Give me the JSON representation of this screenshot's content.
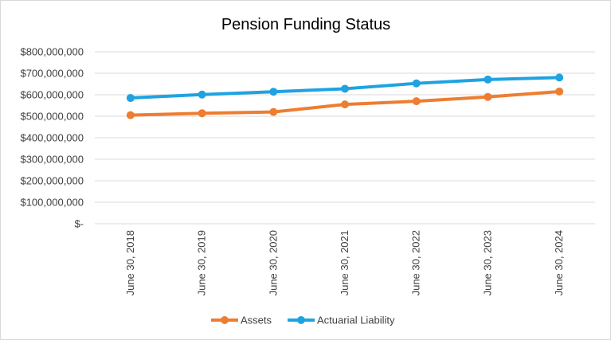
{
  "chart_data": {
    "type": "line",
    "title": "Pension Funding Status",
    "xlabel": "",
    "ylabel": "",
    "categories": [
      "June 30, 2018",
      "June 30, 2019",
      "June 30, 2020",
      "June 30, 2021",
      "June 30, 2022",
      "June 30, 2023",
      "June 30, 2024"
    ],
    "series": [
      {
        "name": "Assets",
        "color": "#ed7d31",
        "values": [
          505000000,
          514000000,
          520000000,
          555000000,
          570000000,
          590000000,
          615000000
        ]
      },
      {
        "name": "Actuarial Liability",
        "color": "#1fa3e0",
        "values": [
          585000000,
          601000000,
          614000000,
          628000000,
          653000000,
          671000000,
          680000000
        ]
      }
    ],
    "ylim": [
      0,
      800000000
    ],
    "yticks": [
      0,
      100000000,
      200000000,
      300000000,
      400000000,
      500000000,
      600000000,
      700000000,
      800000000
    ],
    "ytick_labels": [
      "$-",
      "$100,000,000",
      "$200,000,000",
      "$300,000,000",
      "$400,000,000",
      "$500,000,000",
      "$600,000,000",
      "$700,000,000",
      "$800,000,000"
    ],
    "grid": true,
    "legend": "bottom"
  }
}
